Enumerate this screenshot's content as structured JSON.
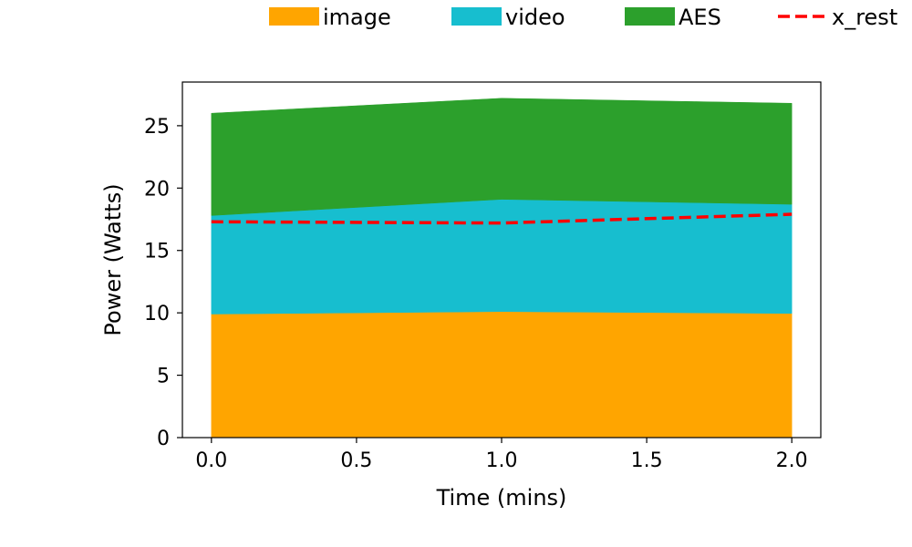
{
  "chart_data": {
    "type": "area",
    "stacked": true,
    "x": [
      0.0,
      1.0,
      2.0
    ],
    "series": [
      {
        "name": "image",
        "values": [
          9.9,
          10.1,
          9.95
        ],
        "color": "#ffa500"
      },
      {
        "name": "video",
        "values": [
          7.9,
          9.0,
          8.75
        ],
        "color": "#17becf"
      },
      {
        "name": "AES",
        "values": [
          8.2,
          8.1,
          8.1
        ],
        "color": "#2ca02c"
      }
    ],
    "lines": [
      {
        "name": "x_rest",
        "values": [
          17.3,
          17.2,
          17.9
        ],
        "color": "#ff0000",
        "style": "dashed"
      }
    ],
    "xlabel": "Time (mins)",
    "ylabel": "Power (Watts)",
    "xlim": [
      -0.1,
      2.1
    ],
    "ylim": [
      0,
      28.5
    ],
    "xticks": [
      0.0,
      0.5,
      1.0,
      1.5,
      2.0
    ],
    "xtick_labels": [
      "0.0",
      "0.5",
      "1.0",
      "1.5",
      "2.0"
    ],
    "yticks": [
      0,
      5,
      10,
      15,
      20,
      25
    ],
    "ytick_labels": [
      "0",
      "5",
      "10",
      "15",
      "20",
      "25"
    ],
    "grid": false,
    "legend_position": "top"
  }
}
